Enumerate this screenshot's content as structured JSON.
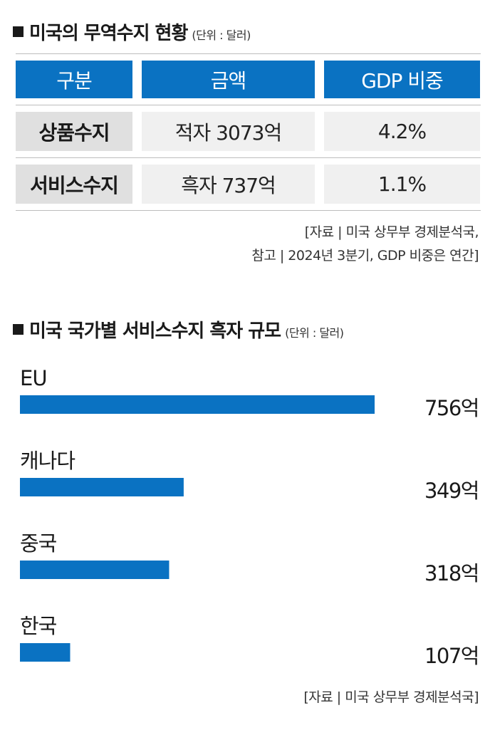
{
  "section1": {
    "title": "미국의 무역수지 현황",
    "unit": "(단위 : 달러)",
    "headers": [
      "구분",
      "금액",
      "GDP 비중"
    ],
    "rows": [
      {
        "label": "상품수지",
        "amount": "적자 3073억",
        "gdp_share": "4.2%"
      },
      {
        "label": "서비스수지",
        "amount": "흑자 737억",
        "gdp_share": "1.1%"
      }
    ],
    "source_line1": "[자료 | 미국 상무부 경제분석국,",
    "source_line2": "참고 | 2024년 3분기, GDP 비중은 연간]"
  },
  "section2": {
    "title": "미국 국가별 서비스수지 흑자 규모",
    "unit": "(단위 : 달러)",
    "source": "[자료 | 미국 상무부 경제분석국]"
  },
  "chart_data": {
    "type": "bar",
    "orientation": "horizontal",
    "title": "미국 국가별 서비스수지 흑자 규모",
    "unit": "억 달러",
    "categories": [
      "EU",
      "캐나다",
      "중국",
      "한국"
    ],
    "values": [
      756,
      349,
      318,
      107
    ],
    "value_labels": [
      "756억",
      "349억",
      "318억",
      "107억"
    ],
    "bar_color": "#0a72c2",
    "grid": false
  },
  "colors": {
    "accent": "#0a72c2",
    "label_cell": "#e0e0e0",
    "value_cell": "#f0f0f0"
  }
}
